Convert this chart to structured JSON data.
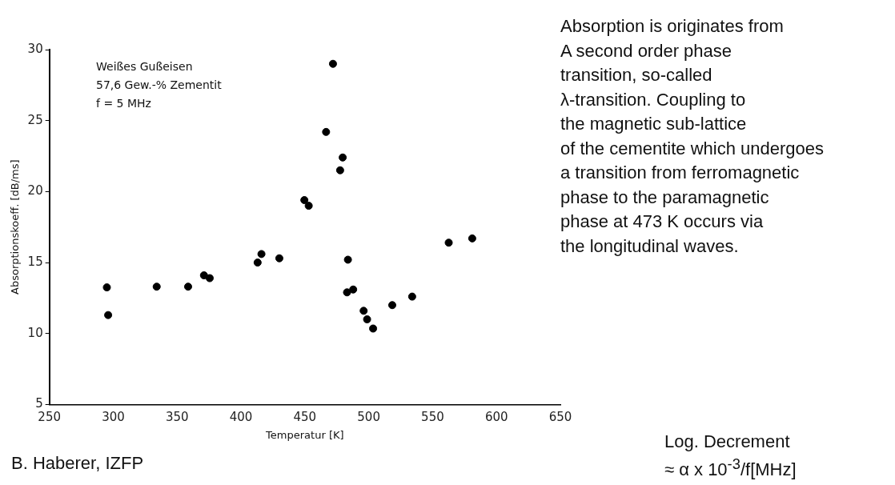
{
  "chart_data": {
    "type": "scatter",
    "xlabel": "Temperatur [K]",
    "ylabel": "Absorptionskoeff. [dB/ms]",
    "x": [
      295,
      296,
      334,
      358.6,
      371,
      375.5,
      413,
      416,
      430,
      449.6,
      453,
      472,
      466.6,
      479.6,
      477.6,
      483.7,
      483,
      487.8,
      496,
      498.7,
      503.4,
      518.4,
      534,
      562.6,
      581
    ],
    "values": [
      13.25,
      11.3,
      13.3,
      13.3,
      14.1,
      13.9,
      15.0,
      15.6,
      15.3,
      19.4,
      19.0,
      29.0,
      24.2,
      22.4,
      21.5,
      15.2,
      12.9,
      13.1,
      11.6,
      11.0,
      10.35,
      12.0,
      12.6,
      16.4,
      16.7
    ],
    "color": "#000000",
    "marker": "circle",
    "xlim": [
      250,
      650
    ],
    "xticks": [
      250,
      300,
      350,
      400,
      450,
      500,
      550,
      600,
      650
    ],
    "ylim": [
      5,
      30
    ],
    "yticks": [
      5,
      10,
      15,
      20,
      25,
      30
    ],
    "grid": false,
    "legend": false,
    "annotations": [
      "Weißes Gußeisen\n57,6 Gew.-% Zementit\nf = 5 MHz",
      "Absorption is originates from\nA second order phase\ntransition, so-called\nλ-transition. Coupling to\nthe magnetic sub-lattice\nof the cementite which undergoes\na transition from ferromagnetic\nphase to the paramagnetic\nphase at 473 K occurs via\nthe longitudinal waves.",
      "B. Haberer, IZFP",
      "Log. Decrement\n≈ α x 10$^{-3}$/f[MHz]"
    ]
  }
}
